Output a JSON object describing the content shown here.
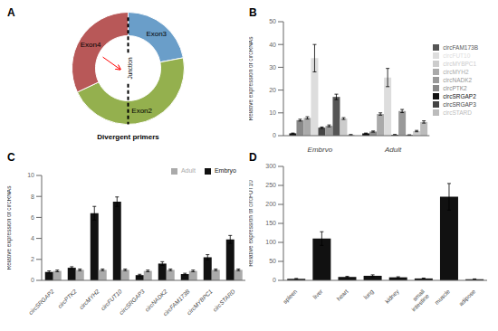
{
  "chart_data": [
    {
      "type": "pie",
      "title": "A",
      "categories": [
        "Exon3",
        "Exon2",
        "Exon4"
      ],
      "values": [
        0.22,
        0.46,
        0.32
      ],
      "colors": [
        "#6a9ec9",
        "#94b04e",
        "#b85858"
      ],
      "annotations": [
        "Junction",
        "Divergent primers"
      ]
    },
    {
      "type": "bar",
      "title": "B",
      "categories": [
        "Embryo",
        "Adult"
      ],
      "series": [
        {
          "name": "circSRGAP2",
          "color": "#111111",
          "values": [
            1.0,
            1.0
          ],
          "errors": [
            0.15,
            0.15
          ]
        },
        {
          "name": "circPTK2",
          "color": "#888888",
          "values": [
            6.8,
            1.8
          ],
          "errors": [
            0.4,
            0.25
          ]
        },
        {
          "name": "circMYH2",
          "color": "#aaaaaa",
          "values": [
            7.8,
            9.5
          ],
          "errors": [
            0.5,
            0.5
          ]
        },
        {
          "name": "circFUT10",
          "color": "#dddddd",
          "values": [
            34.0,
            25.5
          ],
          "errors": [
            6.0,
            4.0
          ]
        },
        {
          "name": "circSRGAP3",
          "color": "#444444",
          "values": [
            3.5,
            0.4
          ],
          "errors": [
            0.3,
            0.1
          ]
        },
        {
          "name": "circNADK2",
          "color": "#999999",
          "values": [
            4.3,
            10.8
          ],
          "errors": [
            0.4,
            0.7
          ]
        },
        {
          "name": "circFAM173B",
          "color": "#555555",
          "values": [
            17.0,
            0.3
          ],
          "errors": [
            1.2,
            0.05
          ]
        },
        {
          "name": "circMYBPC1",
          "color": "#cccccc",
          "values": [
            7.5,
            2.0
          ],
          "errors": [
            0.4,
            0.3
          ]
        },
        {
          "name": "circSTARD",
          "color": "#bbbbbb",
          "values": [
            0.4,
            6.0
          ],
          "errors": [
            0.05,
            0.5
          ]
        }
      ],
      "ylabel": "Relative expression of circRNAs",
      "ylim": [
        0,
        50
      ],
      "yticks": [
        0,
        10,
        20,
        30,
        40,
        50
      ],
      "legend": "right"
    },
    {
      "type": "bar",
      "title": "C",
      "categories": [
        "circSRGAP2",
        "circPTK2",
        "circMYH2",
        "circFUT10",
        "circSRGAP3",
        "circNADK2",
        "circFAM173B",
        "circMYBPC1",
        "circSTARD"
      ],
      "series": [
        {
          "name": "Embryo",
          "color": "#111111",
          "values": [
            0.8,
            1.2,
            6.4,
            7.5,
            0.5,
            1.6,
            0.6,
            2.2,
            3.9
          ],
          "errors": [
            0.1,
            0.1,
            0.65,
            0.45,
            0.08,
            0.18,
            0.08,
            0.25,
            0.38
          ]
        },
        {
          "name": "Adult",
          "color": "#aaaaaa",
          "values": [
            0.9,
            1.0,
            1.0,
            1.0,
            0.9,
            1.0,
            0.9,
            1.0,
            1.0
          ],
          "errors": [
            0.08,
            0.08,
            0.08,
            0.08,
            0.08,
            0.08,
            0.08,
            0.08,
            0.08
          ]
        }
      ],
      "ylabel": "Relative expression of circRNAs",
      "ylim": [
        0,
        10
      ],
      "yticks": [
        0,
        2,
        4,
        6,
        8,
        10
      ],
      "legend": "upper right"
    },
    {
      "type": "bar",
      "title": "D",
      "categories": [
        "spleen",
        "liver",
        "heart",
        "lung",
        "kidney",
        "small\nintestine",
        "muscle",
        "adipose"
      ],
      "values": [
        4,
        110,
        9,
        12,
        8,
        5,
        220,
        3
      ],
      "errors": [
        1.0,
        18,
        1.5,
        2.5,
        1.5,
        1.0,
        35,
        0.8
      ],
      "color": "#111111",
      "ylabel": "Relative expression of circFUT10",
      "ylim": [
        0,
        300
      ],
      "yticks": [
        0,
        50,
        100,
        150,
        200,
        250,
        300
      ]
    }
  ]
}
